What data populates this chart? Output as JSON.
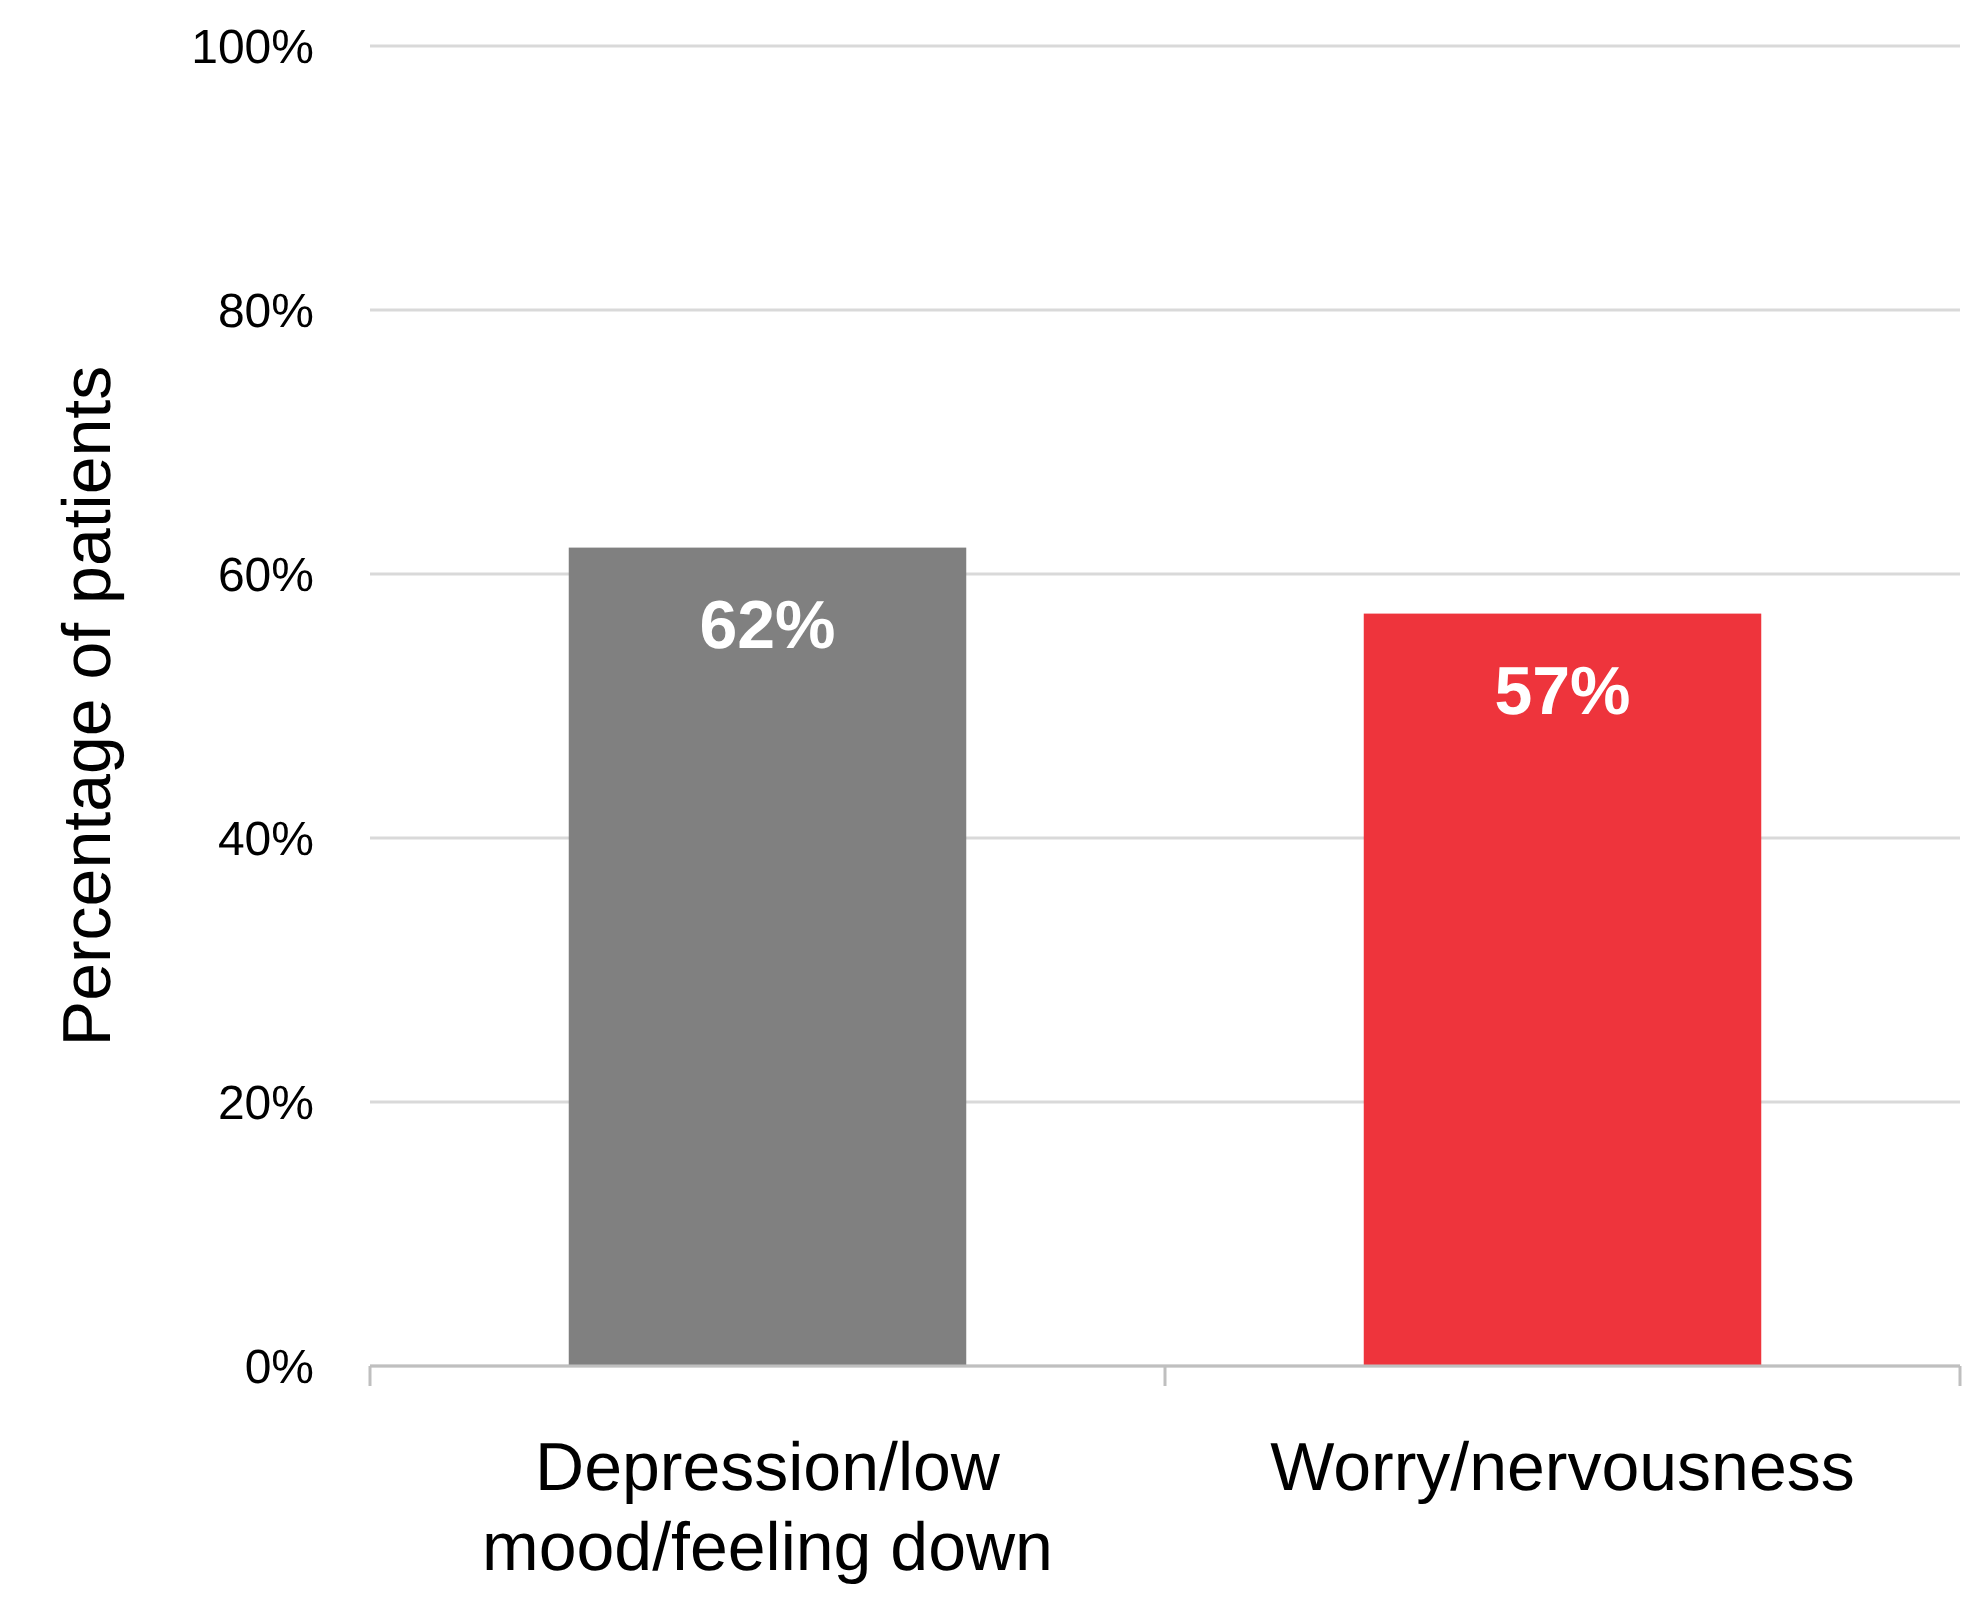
{
  "chart_data": {
    "type": "bar",
    "ylabel": "Percentage of patients",
    "categories": [
      "Depression/low mood/feeling down",
      "Worry/nervousness"
    ],
    "values": [
      62,
      57
    ],
    "colors": [
      "#808080",
      "#ee343c"
    ],
    "value_labels": [
      "62%",
      "57%"
    ],
    "ylim": [
      0,
      100
    ],
    "yticks": [
      {
        "value": 0,
        "label": "0%"
      },
      {
        "value": 20,
        "label": "20%"
      },
      {
        "value": 40,
        "label": "40%"
      },
      {
        "value": 60,
        "label": "60%"
      },
      {
        "value": 80,
        "label": "80%"
      },
      {
        "value": 100,
        "label": "100%"
      }
    ],
    "grid": "y"
  }
}
